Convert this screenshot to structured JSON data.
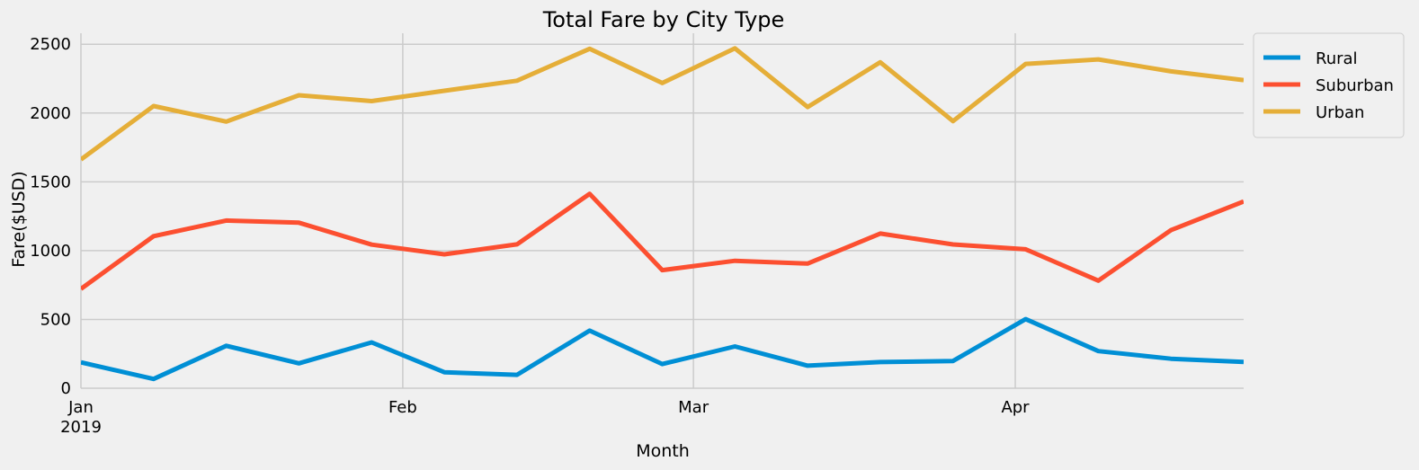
{
  "chart_data": {
    "type": "line",
    "title": "Total Fare by City Type",
    "xlabel": "Month",
    "ylabel": "Fare($USD)",
    "x": [
      "2019-01-01",
      "2019-01-08",
      "2019-01-15",
      "2019-01-22",
      "2019-01-29",
      "2019-02-05",
      "2019-02-12",
      "2019-02-19",
      "2019-02-26",
      "2019-03-05",
      "2019-03-12",
      "2019-03-19",
      "2019-03-26",
      "2019-04-02",
      "2019-04-09",
      "2019-04-16",
      "2019-04-23"
    ],
    "x_ticks": [
      {
        "date": "2019-01-01",
        "label": "Jan",
        "sublabel": "2019"
      },
      {
        "date": "2019-02-01",
        "label": "Feb",
        "sublabel": ""
      },
      {
        "date": "2019-03-01",
        "label": "Mar",
        "sublabel": ""
      },
      {
        "date": "2019-04-01",
        "label": "Apr",
        "sublabel": ""
      }
    ],
    "xlim": [
      "2019-01-01",
      "2019-04-23"
    ],
    "ylim": [
      0,
      2580
    ],
    "y_ticks": [
      0,
      500,
      1000,
      1500,
      2000,
      2500
    ],
    "grid": true,
    "legend_position": "outside-top-right",
    "series": [
      {
        "name": "Rural",
        "color": "#008fd5",
        "values": [
          188,
          67,
          308,
          181,
          333,
          116,
          97,
          419,
          176,
          304,
          164,
          190,
          198,
          502,
          270,
          214,
          191
        ]
      },
      {
        "name": "Suburban",
        "color": "#fc4f30",
        "values": [
          722,
          1105,
          1219,
          1203,
          1044,
          973,
          1046,
          1413,
          858,
          926,
          906,
          1124,
          1045,
          1010,
          782,
          1149,
          1357
        ]
      },
      {
        "name": "Urban",
        "color": "#e5ae38",
        "values": [
          1662,
          2051,
          1938,
          2129,
          2087,
          2162,
          2235,
          2467,
          2218,
          2470,
          2044,
          2369,
          1941,
          2357,
          2390,
          2303,
          2239
        ]
      }
    ]
  }
}
